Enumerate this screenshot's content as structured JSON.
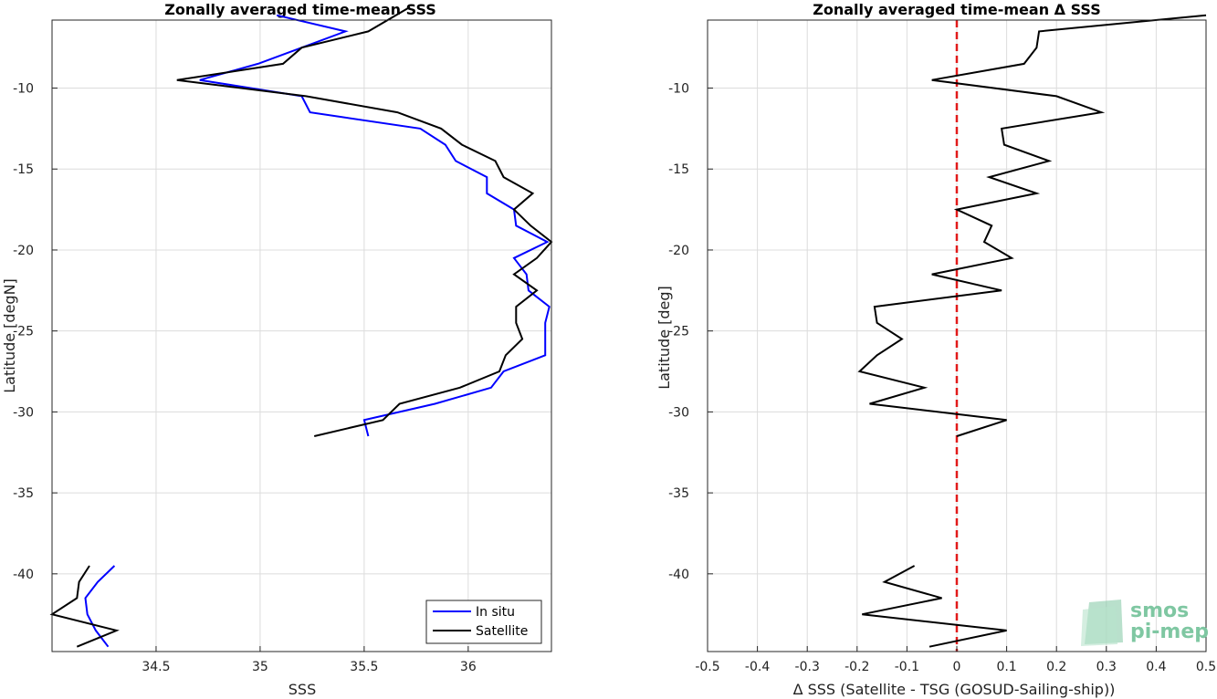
{
  "chart_data": [
    {
      "type": "line",
      "title": "Zonally averaged time-mean SSS",
      "xlabel": "SSS",
      "ylabel": "Latitude [degN]",
      "xlim": [
        34.0,
        36.4
      ],
      "ylim": [
        -44.8,
        -5.8
      ],
      "xticks": [
        34.5,
        35,
        35.5,
        36
      ],
      "xtick_labels": [
        "34.5",
        "35",
        "35.5",
        "36"
      ],
      "yticks": [
        -10,
        -15,
        -20,
        -25,
        -30,
        -35,
        -40
      ],
      "ytick_labels": [
        "-10",
        "-15",
        "-20",
        "-25",
        "-30",
        "-35",
        "-40"
      ],
      "grid": true,
      "legend_position": "bottom-right",
      "series": [
        {
          "name": "In situ",
          "color": "#0000ff",
          "segments": [
            [
              [
                35.08,
                -5.5
              ],
              [
                35.41,
                -6.5
              ],
              [
                35.2,
                -7.5
              ],
              [
                34.99,
                -8.5
              ],
              [
                34.71,
                -9.5
              ],
              [
                35.2,
                -10.5
              ],
              [
                35.24,
                -11.5
              ],
              [
                35.77,
                -12.5
              ],
              [
                35.89,
                -13.5
              ],
              [
                35.94,
                -14.5
              ],
              [
                36.09,
                -15.5
              ],
              [
                36.09,
                -16.5
              ],
              [
                36.22,
                -17.5
              ],
              [
                36.23,
                -18.5
              ],
              [
                36.38,
                -19.5
              ],
              [
                36.22,
                -20.5
              ],
              [
                36.28,
                -21.5
              ],
              [
                36.29,
                -22.5
              ],
              [
                36.39,
                -23.5
              ],
              [
                36.37,
                -24.5
              ],
              [
                36.37,
                -25.5
              ],
              [
                36.37,
                -26.5
              ],
              [
                36.17,
                -27.5
              ],
              [
                36.11,
                -28.5
              ],
              [
                35.84,
                -29.5
              ],
              [
                35.5,
                -30.5
              ],
              [
                35.52,
                -31.5
              ]
            ],
            [
              [
                34.3,
                -39.5
              ],
              [
                34.22,
                -40.5
              ],
              [
                34.16,
                -41.5
              ],
              [
                34.17,
                -42.5
              ],
              [
                34.21,
                -43.5
              ],
              [
                34.27,
                -44.5
              ]
            ]
          ]
        },
        {
          "name": "Satellite",
          "color": "#000000",
          "segments": [
            [
              [
                35.72,
                -5.0
              ],
              [
                35.52,
                -6.5
              ],
              [
                35.2,
                -7.5
              ],
              [
                35.11,
                -8.5
              ],
              [
                34.6,
                -9.5
              ],
              [
                35.22,
                -10.5
              ],
              [
                35.66,
                -11.5
              ],
              [
                35.87,
                -12.5
              ],
              [
                35.97,
                -13.5
              ],
              [
                36.13,
                -14.5
              ],
              [
                36.17,
                -15.5
              ],
              [
                36.31,
                -16.5
              ],
              [
                36.22,
                -17.5
              ],
              [
                36.3,
                -18.5
              ],
              [
                36.4,
                -19.5
              ],
              [
                36.33,
                -20.5
              ],
              [
                36.22,
                -21.5
              ],
              [
                36.33,
                -22.5
              ],
              [
                36.23,
                -23.5
              ],
              [
                36.23,
                -24.5
              ],
              [
                36.26,
                -25.5
              ],
              [
                36.18,
                -26.5
              ],
              [
                36.15,
                -27.5
              ],
              [
                35.96,
                -28.5
              ],
              [
                35.67,
                -29.5
              ],
              [
                35.59,
                -30.5
              ],
              [
                35.26,
                -31.5
              ]
            ],
            [
              [
                34.18,
                -39.5
              ],
              [
                34.13,
                -40.5
              ],
              [
                34.12,
                -41.5
              ],
              [
                34.0,
                -42.5
              ],
              [
                34.31,
                -43.5
              ],
              [
                34.12,
                -44.5
              ]
            ]
          ]
        }
      ]
    },
    {
      "type": "line",
      "title": "Zonally averaged time-mean Δ SSS",
      "xlabel": "Δ SSS (Satellite - TSG (GOSUD-Sailing-ship))",
      "ylabel": "Latitude [deg]",
      "xlim": [
        -0.5,
        0.5
      ],
      "ylim": [
        -44.8,
        -5.8
      ],
      "xticks": [
        -0.5,
        -0.4,
        -0.3,
        -0.2,
        -0.1,
        0,
        0.1,
        0.2,
        0.3,
        0.4,
        0.5
      ],
      "xtick_labels": [
        "-0.5",
        "-0.4",
        "-0.3",
        "-0.2",
        "-0.1",
        "0",
        "0.1",
        "0.2",
        "0.3",
        "0.4",
        "0.5"
      ],
      "yticks": [
        -10,
        -15,
        -20,
        -25,
        -30,
        -35,
        -40
      ],
      "ytick_labels": [
        "-10",
        "-15",
        "-20",
        "-25",
        "-30",
        "-35",
        "-40"
      ],
      "grid": true,
      "reference_line": {
        "x": 0,
        "color": "#e11a1a",
        "style": "dashed"
      },
      "series": [
        {
          "name": "",
          "color": "#000000",
          "segments": [
            [
              [
                0.5,
                -5.5
              ],
              [
                0.165,
                -6.5
              ],
              [
                0.16,
                -7.5
              ],
              [
                0.135,
                -8.5
              ],
              [
                -0.05,
                -9.5
              ],
              [
                0.2,
                -10.5
              ],
              [
                0.29,
                -11.5
              ],
              [
                0.09,
                -12.5
              ],
              [
                0.095,
                -13.5
              ],
              [
                0.185,
                -14.5
              ],
              [
                0.065,
                -15.5
              ],
              [
                0.16,
                -16.5
              ],
              [
                0.0,
                -17.5
              ],
              [
                0.07,
                -18.5
              ],
              [
                0.055,
                -19.5
              ],
              [
                0.11,
                -20.5
              ],
              [
                -0.05,
                -21.5
              ],
              [
                0.09,
                -22.5
              ],
              [
                -0.165,
                -23.5
              ],
              [
                -0.16,
                -24.5
              ],
              [
                -0.11,
                -25.5
              ],
              [
                -0.16,
                -26.5
              ],
              [
                -0.195,
                -27.5
              ],
              [
                -0.065,
                -28.5
              ],
              [
                -0.175,
                -29.5
              ],
              [
                0.1,
                -30.5
              ],
              [
                0.0,
                -31.5
              ]
            ],
            [
              [
                -0.085,
                -39.5
              ],
              [
                -0.145,
                -40.5
              ],
              [
                -0.03,
                -41.5
              ],
              [
                -0.19,
                -42.5
              ],
              [
                0.1,
                -43.5
              ],
              [
                -0.055,
                -44.5
              ]
            ]
          ]
        }
      ]
    }
  ],
  "legend": {
    "items": [
      {
        "label": "In situ",
        "color": "#0000ff"
      },
      {
        "label": "Satellite",
        "color": "#000000"
      }
    ]
  },
  "logo": {
    "line1": "smos",
    "line2": "pi-mep"
  }
}
